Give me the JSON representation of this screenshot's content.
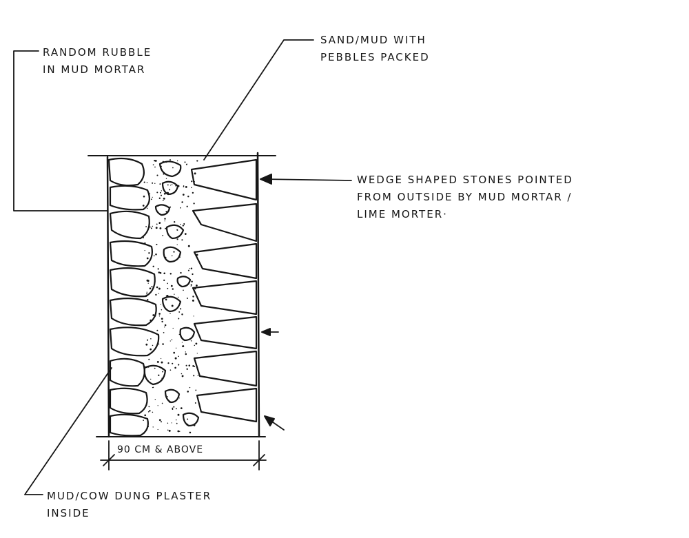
{
  "labels": {
    "rubble": {
      "line1": "RANDOM RUBBLE",
      "line2": "IN MUD MORTAR"
    },
    "sand": {
      "line1": "SAND/MUD WITH",
      "line2": "PEBBLES PACKED"
    },
    "wedge": {
      "line1": "WEDGE SHAPED STONES POINTED",
      "line2": "FROM OUTSIDE BY MUD MORTAR /",
      "line3": "LIME MORTER·"
    },
    "plaster": {
      "line1": "MUD/COW DUNG PLASTER",
      "line2": "INSIDE"
    },
    "dimension": "90 CM & ABOVE"
  },
  "colors": {
    "ink": "#161616",
    "paper": "#ffffff"
  }
}
